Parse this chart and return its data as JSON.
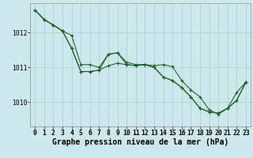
{
  "background_color": "#cce8ec",
  "grid_color": "#aacccc",
  "line_color": "#1a5e20",
  "marker_color": "#1a5e20",
  "xlabel": "Graphe pression niveau de la mer (hPa)",
  "ylim": [
    1009.3,
    1012.85
  ],
  "xlim": [
    -0.5,
    23.5
  ],
  "yticks": [
    1010,
    1011,
    1012
  ],
  "xticks": [
    0,
    1,
    2,
    3,
    4,
    5,
    6,
    7,
    8,
    9,
    10,
    11,
    12,
    13,
    14,
    15,
    16,
    17,
    18,
    19,
    20,
    21,
    22,
    23
  ],
  "series": {
    "line1": [
      1012.65,
      1012.38,
      1012.22,
      1012.05,
      1011.55,
      1010.88,
      1010.88,
      1010.92,
      1011.05,
      1011.12,
      1011.08,
      1011.05,
      1011.08,
      1011.0,
      1010.72,
      1010.62,
      1010.42,
      1010.15,
      1009.82,
      1009.72,
      1009.68,
      1009.82,
      1010.28,
      1010.58
    ],
    "line2": [
      1012.65,
      1012.38,
      1012.22,
      1012.05,
      1011.92,
      1011.08,
      1011.08,
      1011.0,
      1011.38,
      1011.42,
      1011.15,
      1011.08,
      1011.08,
      1011.05,
      1011.08,
      1011.02,
      1010.62,
      1010.35,
      1010.15,
      1009.78,
      1009.65,
      1009.82,
      1010.05,
      1010.58
    ],
    "line3": [
      1012.65,
      1012.38,
      1012.22,
      1012.05,
      1011.55,
      1010.88,
      1010.88,
      1010.92,
      1011.38,
      1011.42,
      1011.08,
      1011.05,
      1011.08,
      1011.0,
      1010.72,
      1010.62,
      1010.42,
      1010.15,
      1009.82,
      1009.72,
      1009.68,
      1009.82,
      1010.05,
      1010.58
    ]
  },
  "font_family": "monospace",
  "tick_fontsize": 5.8,
  "label_fontsize": 7.0
}
